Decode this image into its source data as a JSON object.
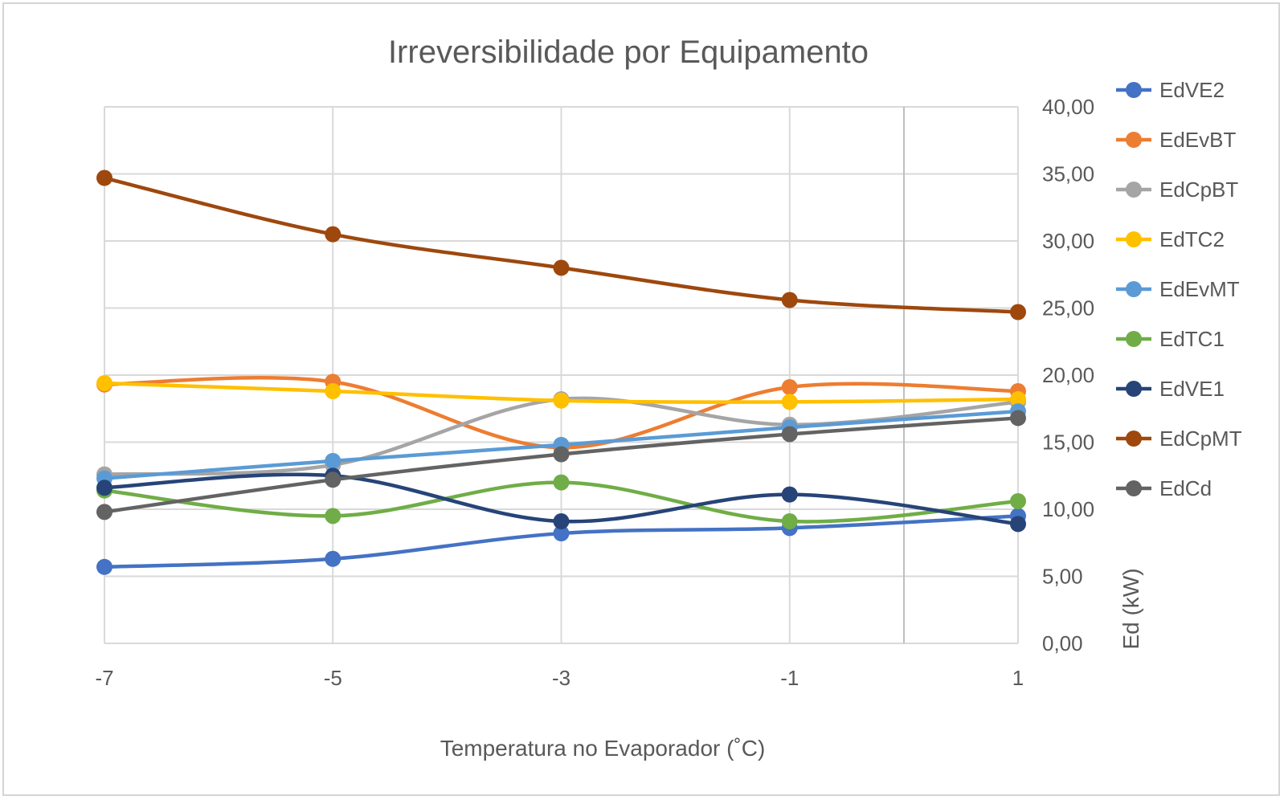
{
  "chart_data": {
    "type": "line",
    "title": "Irreversibilidade por Equipamento",
    "xlabel": "Temperatura no Evaporador (˚C)",
    "ylabel": "Ed (kW)",
    "x": [
      -7,
      -5,
      -3,
      -1,
      1
    ],
    "x_tick_labels": [
      "-7",
      "-5",
      "-3",
      "-1",
      "1"
    ],
    "ylim": [
      0,
      40
    ],
    "y_tick_labels": [
      "0,00",
      "5,00",
      "10,00",
      "15,00",
      "20,00",
      "25,00",
      "30,00",
      "35,00",
      "40,00"
    ],
    "grid": true,
    "legend_position": "right",
    "smooth": true,
    "series": [
      {
        "name": "EdVE2",
        "color": "#4472C4",
        "values": [
          5.7,
          6.3,
          8.2,
          8.6,
          9.5
        ]
      },
      {
        "name": "EdEvBT",
        "color": "#ED7D31",
        "values": [
          19.3,
          19.5,
          14.6,
          19.1,
          18.8
        ]
      },
      {
        "name": "EdCpBT",
        "color": "#A5A5A5",
        "values": [
          12.6,
          13.3,
          18.2,
          16.3,
          18.0
        ]
      },
      {
        "name": "EdTC2",
        "color": "#FFC000",
        "values": [
          19.4,
          18.8,
          18.1,
          18.0,
          18.2
        ]
      },
      {
        "name": "EdEvMT",
        "color": "#5B9BD5",
        "values": [
          12.3,
          13.6,
          14.8,
          16.1,
          17.3
        ]
      },
      {
        "name": "EdTC1",
        "color": "#70AD47",
        "values": [
          11.4,
          9.5,
          12.0,
          9.1,
          10.6
        ]
      },
      {
        "name": "EdVE1",
        "color": "#264478",
        "values": [
          11.6,
          12.5,
          9.1,
          11.1,
          8.9
        ]
      },
      {
        "name": "EdCpMT",
        "color": "#9E480E",
        "values": [
          34.7,
          30.5,
          28.0,
          25.6,
          24.7
        ]
      },
      {
        "name": "EdCd",
        "color": "#636363",
        "values": [
          9.8,
          12.2,
          14.1,
          15.6,
          16.8
        ]
      }
    ]
  }
}
